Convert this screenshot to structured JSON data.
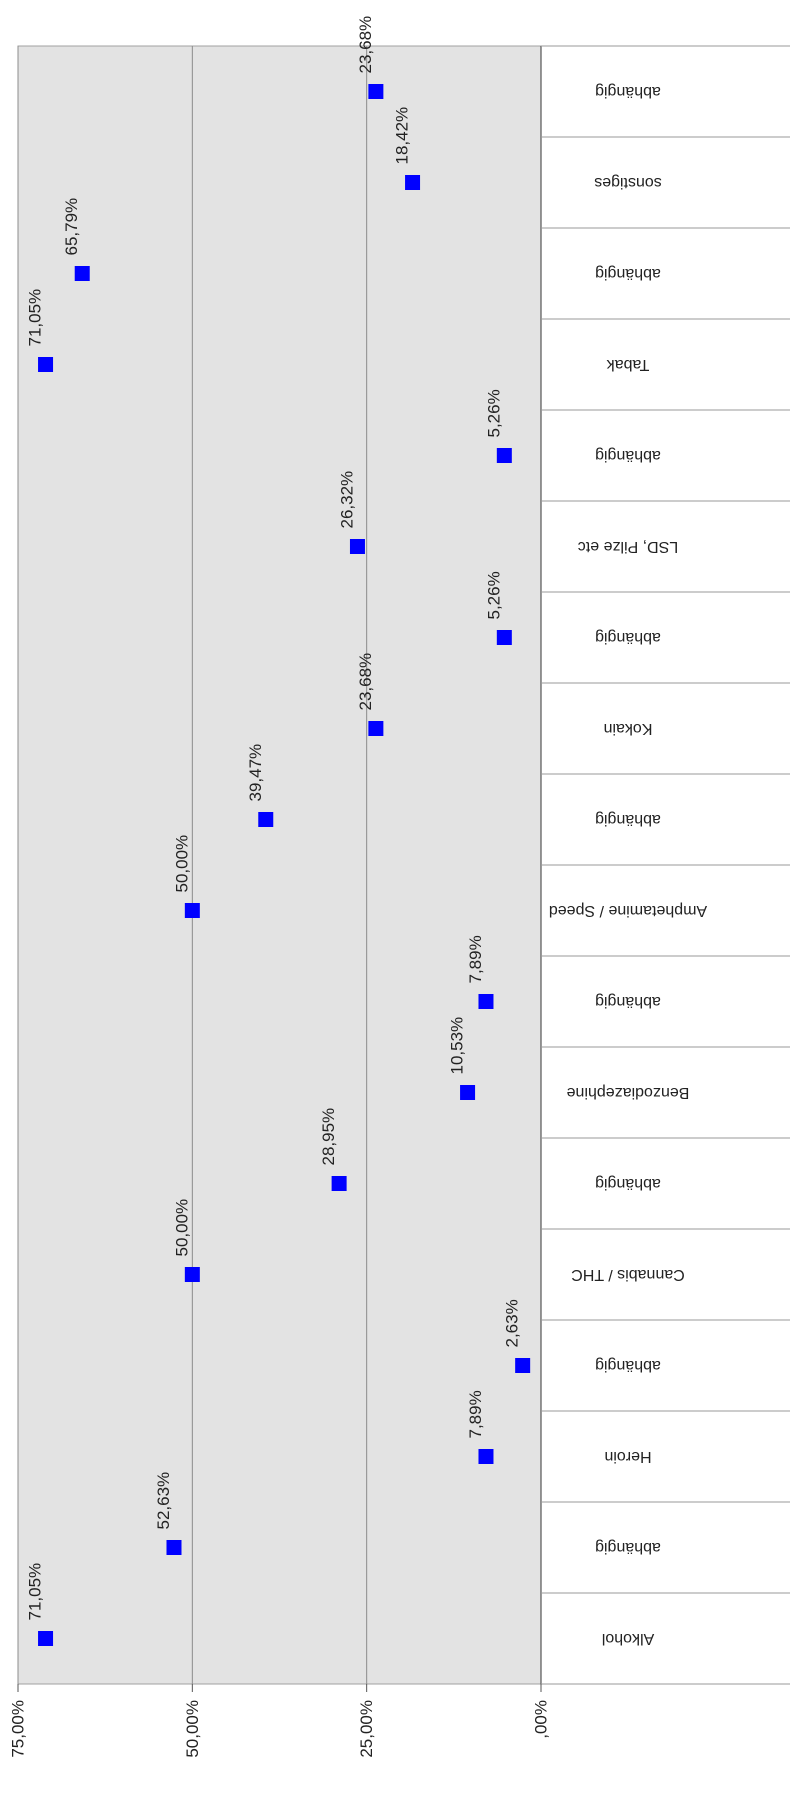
{
  "chart_data": {
    "type": "scatter",
    "orientation": "rotated-180",
    "categories": [
      "Alkohol",
      "abhängig",
      "Heroin",
      "abhängig",
      "Cannabis / THC",
      "abhängig",
      "Benzodiazephine",
      "abhängig",
      "Amphetamine / Speed",
      "abhängig",
      "Kokain",
      "abhängig",
      "LSD, Pilze etc",
      "abhängig",
      "Tabak",
      "abhängig",
      "sonstiges",
      "abhängig"
    ],
    "values": [
      71.05,
      52.63,
      7.89,
      2.63,
      50.0,
      28.95,
      10.53,
      7.89,
      50.0,
      39.47,
      23.68,
      5.26,
      26.32,
      5.26,
      71.05,
      65.79,
      18.42,
      23.68
    ],
    "value_labels": [
      "71,05%",
      "52,63%",
      "7,89%",
      "2,63%",
      "50,00%",
      "28,95%",
      "10,53%",
      "7,89%",
      "50,00%",
      "39,47%",
      "23,68%",
      "5,26%",
      "26,32%",
      "5,26%",
      "71,05%",
      "65,79%",
      "18,42%",
      "23,68%"
    ],
    "ylim": [
      0,
      75
    ],
    "yticks": [
      0,
      25,
      50,
      75
    ],
    "ytick_labels": [
      ",00%",
      "25,00%",
      "50,00%",
      "75,00%"
    ],
    "grid": true,
    "marker": "square",
    "colors": {
      "marker": "#0000ff",
      "plot_bg": "#e3e3e3",
      "gridline": "#8c8c8c",
      "axis": "#999999"
    }
  }
}
